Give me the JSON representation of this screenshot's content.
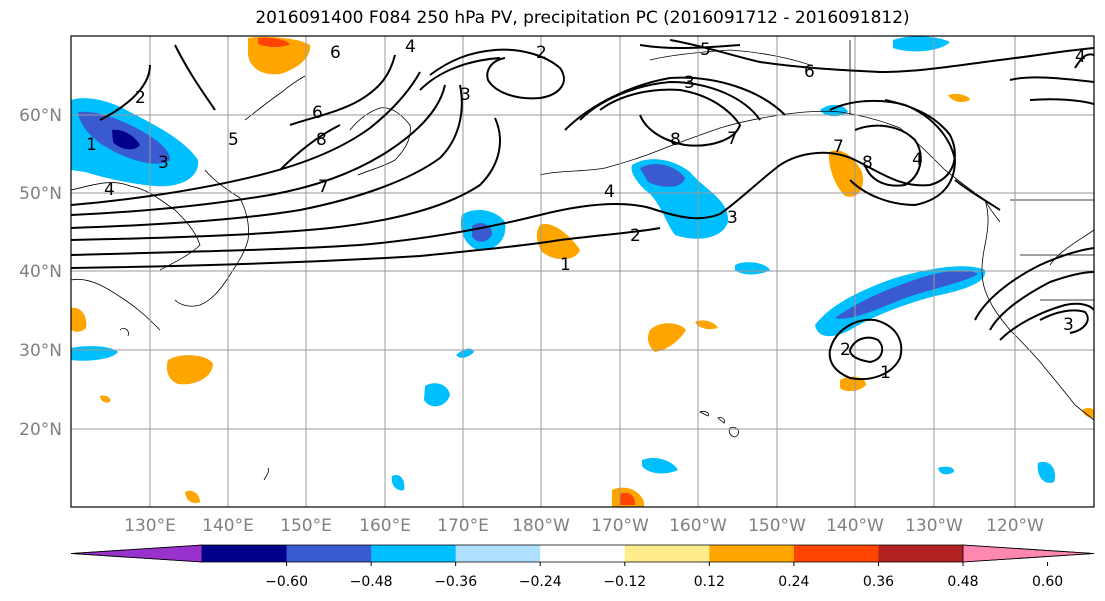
{
  "title": "2016091400 F084 250 hPa PV, precipitation PC (2016091712 - 2016091812)",
  "lat_labels": [
    "60°N",
    "50°N",
    "40°N",
    "30°N",
    "20°N"
  ],
  "lon_labels": [
    "130°E",
    "140°E",
    "150°E",
    "160°E",
    "170°E",
    "180°W",
    "170°W",
    "160°W",
    "150°W",
    "140°W",
    "130°W",
    "120°W"
  ],
  "colorbar": {
    "ticks": [
      "−0.60",
      "−0.48",
      "−0.36",
      "−0.24",
      "−0.12",
      "0.12",
      "0.24",
      "0.36",
      "0.48",
      "0.60"
    ],
    "colors": [
      "#9932cc",
      "#00008b",
      "#3a5bd0",
      "#00bfff",
      "#b0e0ff",
      "#ffffff",
      "#ffec8b",
      "#ffa500",
      "#ff4500",
      "#b22222",
      "#ff88b0"
    ]
  },
  "contour_labels": [
    "2",
    "1",
    "4",
    "3",
    "5",
    "6",
    "7",
    "8"
  ]
}
